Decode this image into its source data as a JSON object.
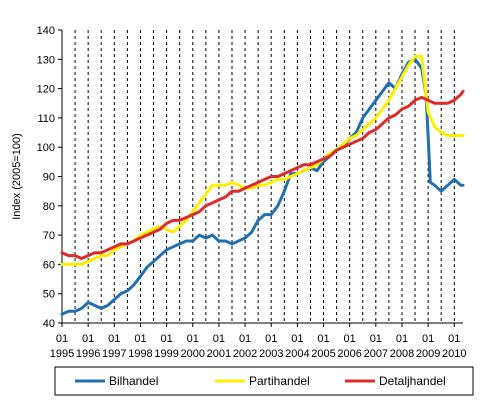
{
  "chart_data": {
    "type": "line",
    "ylabel": "Index (2005=100)",
    "ylim": [
      40,
      140
    ],
    "yticks": [
      40,
      50,
      60,
      70,
      80,
      90,
      100,
      110,
      120,
      130,
      140
    ],
    "x_range": [
      "1995-01",
      "2010-05"
    ],
    "x_month_label": "01",
    "x_year_labels": [
      "1995",
      "1996",
      "1997",
      "1998",
      "1999",
      "2000",
      "2001",
      "2002",
      "2003",
      "2004",
      "2005",
      "2006",
      "2007",
      "2008",
      "2009",
      "2010"
    ],
    "grid": "vertical dashed lines at each half-year",
    "legend_position": "bottom",
    "series": [
      {
        "name": "Bilhandel",
        "color": "#1f6fb1",
        "points": [
          [
            "1995-01",
            43
          ],
          [
            "1995-04",
            44
          ],
          [
            "1995-07",
            44
          ],
          [
            "1995-10",
            45
          ],
          [
            "1996-01",
            47
          ],
          [
            "1996-04",
            46
          ],
          [
            "1996-07",
            45
          ],
          [
            "1996-10",
            46
          ],
          [
            "1997-01",
            48
          ],
          [
            "1997-04",
            50
          ],
          [
            "1997-07",
            51
          ],
          [
            "1997-10",
            53
          ],
          [
            "1998-01",
            56
          ],
          [
            "1998-04",
            59
          ],
          [
            "1998-07",
            61
          ],
          [
            "1998-10",
            63
          ],
          [
            "1999-01",
            65
          ],
          [
            "1999-04",
            66
          ],
          [
            "1999-07",
            67
          ],
          [
            "1999-10",
            68
          ],
          [
            "2000-01",
            68
          ],
          [
            "2000-04",
            70
          ],
          [
            "2000-07",
            69
          ],
          [
            "2000-10",
            70
          ],
          [
            "2001-01",
            68
          ],
          [
            "2001-04",
            68
          ],
          [
            "2001-07",
            67
          ],
          [
            "2001-10",
            68
          ],
          [
            "2002-01",
            69
          ],
          [
            "2002-04",
            71
          ],
          [
            "2002-07",
            75
          ],
          [
            "2002-10",
            77
          ],
          [
            "2003-01",
            77
          ],
          [
            "2003-04",
            80
          ],
          [
            "2003-07",
            85
          ],
          [
            "2003-10",
            91
          ],
          [
            "2004-01",
            91
          ],
          [
            "2004-04",
            92
          ],
          [
            "2004-07",
            93
          ],
          [
            "2004-10",
            92
          ],
          [
            "2005-01",
            95
          ],
          [
            "2005-04",
            97
          ],
          [
            "2005-07",
            99
          ],
          [
            "2005-10",
            100
          ],
          [
            "2006-01",
            103
          ],
          [
            "2006-04",
            105
          ],
          [
            "2006-07",
            110
          ],
          [
            "2006-10",
            113
          ],
          [
            "2007-01",
            116
          ],
          [
            "2007-04",
            119
          ],
          [
            "2007-07",
            122
          ],
          [
            "2007-10",
            120
          ],
          [
            "2008-01",
            125
          ],
          [
            "2008-04",
            129
          ],
          [
            "2008-07",
            130
          ],
          [
            "2008-10",
            127
          ],
          [
            "2008-12",
            118
          ],
          [
            "2009-01",
            104
          ],
          [
            "2009-02",
            88
          ],
          [
            "2009-04",
            87
          ],
          [
            "2009-07",
            85
          ],
          [
            "2009-10",
            87
          ],
          [
            "2010-01",
            89
          ],
          [
            "2010-04",
            87
          ],
          [
            "2010-05",
            87
          ]
        ]
      },
      {
        "name": "Partihandel",
        "color": "#ffee00",
        "points": [
          [
            "1995-01",
            60
          ],
          [
            "1995-04",
            60
          ],
          [
            "1995-07",
            60
          ],
          [
            "1995-10",
            60
          ],
          [
            "1996-01",
            61
          ],
          [
            "1996-04",
            62
          ],
          [
            "1996-07",
            63
          ],
          [
            "1996-10",
            63
          ],
          [
            "1997-01",
            65
          ],
          [
            "1997-04",
            66
          ],
          [
            "1997-07",
            67
          ],
          [
            "1997-10",
            68
          ],
          [
            "1998-01",
            70
          ],
          [
            "1998-04",
            71
          ],
          [
            "1998-07",
            72
          ],
          [
            "1998-10",
            73
          ],
          [
            "1999-01",
            72
          ],
          [
            "1999-04",
            71
          ],
          [
            "1999-07",
            73
          ],
          [
            "1999-10",
            75
          ],
          [
            "2000-01",
            78
          ],
          [
            "2000-04",
            81
          ],
          [
            "2000-07",
            84
          ],
          [
            "2000-10",
            87
          ],
          [
            "2001-01",
            87
          ],
          [
            "2001-04",
            87
          ],
          [
            "2001-07",
            88
          ],
          [
            "2001-10",
            87
          ],
          [
            "2002-01",
            86
          ],
          [
            "2002-04",
            86
          ],
          [
            "2002-07",
            87
          ],
          [
            "2002-10",
            87
          ],
          [
            "2003-01",
            88
          ],
          [
            "2003-04",
            89
          ],
          [
            "2003-07",
            89
          ],
          [
            "2003-10",
            90
          ],
          [
            "2004-01",
            91
          ],
          [
            "2004-04",
            92
          ],
          [
            "2004-07",
            93
          ],
          [
            "2004-10",
            94
          ],
          [
            "2005-01",
            96
          ],
          [
            "2005-04",
            98
          ],
          [
            "2005-07",
            99
          ],
          [
            "2005-10",
            101
          ],
          [
            "2006-01",
            103
          ],
          [
            "2006-04",
            104
          ],
          [
            "2006-07",
            106
          ],
          [
            "2006-10",
            108
          ],
          [
            "2007-01",
            110
          ],
          [
            "2007-04",
            113
          ],
          [
            "2007-07",
            116
          ],
          [
            "2007-10",
            120
          ],
          [
            "2008-01",
            124
          ],
          [
            "2008-04",
            128
          ],
          [
            "2008-07",
            131
          ],
          [
            "2008-10",
            131
          ],
          [
            "2009-01",
            112
          ],
          [
            "2009-04",
            107
          ],
          [
            "2009-07",
            105
          ],
          [
            "2009-10",
            104
          ],
          [
            "2010-01",
            104
          ],
          [
            "2010-04",
            104
          ],
          [
            "2010-05",
            104
          ]
        ]
      },
      {
        "name": "Detaljhandel",
        "color": "#dd2a2a",
        "points": [
          [
            "1995-01",
            64
          ],
          [
            "1995-04",
            63
          ],
          [
            "1995-07",
            63
          ],
          [
            "1995-10",
            62
          ],
          [
            "1996-01",
            63
          ],
          [
            "1996-04",
            64
          ],
          [
            "1996-07",
            64
          ],
          [
            "1996-10",
            65
          ],
          [
            "1997-01",
            66
          ],
          [
            "1997-04",
            67
          ],
          [
            "1997-07",
            67
          ],
          [
            "1997-10",
            68
          ],
          [
            "1998-01",
            69
          ],
          [
            "1998-04",
            70
          ],
          [
            "1998-07",
            71
          ],
          [
            "1998-10",
            72
          ],
          [
            "1999-01",
            74
          ],
          [
            "1999-04",
            75
          ],
          [
            "1999-07",
            75
          ],
          [
            "1999-10",
            76
          ],
          [
            "2000-01",
            77
          ],
          [
            "2000-04",
            78
          ],
          [
            "2000-07",
            80
          ],
          [
            "2000-10",
            81
          ],
          [
            "2001-01",
            82
          ],
          [
            "2001-04",
            83
          ],
          [
            "2001-07",
            85
          ],
          [
            "2001-10",
            85
          ],
          [
            "2002-01",
            86
          ],
          [
            "2002-04",
            87
          ],
          [
            "2002-07",
            88
          ],
          [
            "2002-10",
            89
          ],
          [
            "2003-01",
            90
          ],
          [
            "2003-04",
            90
          ],
          [
            "2003-07",
            91
          ],
          [
            "2003-10",
            92
          ],
          [
            "2004-01",
            93
          ],
          [
            "2004-04",
            94
          ],
          [
            "2004-07",
            94
          ],
          [
            "2004-10",
            95
          ],
          [
            "2005-01",
            96
          ],
          [
            "2005-04",
            97
          ],
          [
            "2005-07",
            99
          ],
          [
            "2005-10",
            100
          ],
          [
            "2006-01",
            101
          ],
          [
            "2006-04",
            102
          ],
          [
            "2006-07",
            103
          ],
          [
            "2006-10",
            105
          ],
          [
            "2007-01",
            106
          ],
          [
            "2007-04",
            108
          ],
          [
            "2007-07",
            110
          ],
          [
            "2007-10",
            111
          ],
          [
            "2008-01",
            113
          ],
          [
            "2008-04",
            114
          ],
          [
            "2008-07",
            116
          ],
          [
            "2008-10",
            117
          ],
          [
            "2009-01",
            116
          ],
          [
            "2009-04",
            115
          ],
          [
            "2009-07",
            115
          ],
          [
            "2009-10",
            115
          ],
          [
            "2010-01",
            116
          ],
          [
            "2010-04",
            118
          ],
          [
            "2010-05",
            119
          ]
        ]
      }
    ]
  }
}
